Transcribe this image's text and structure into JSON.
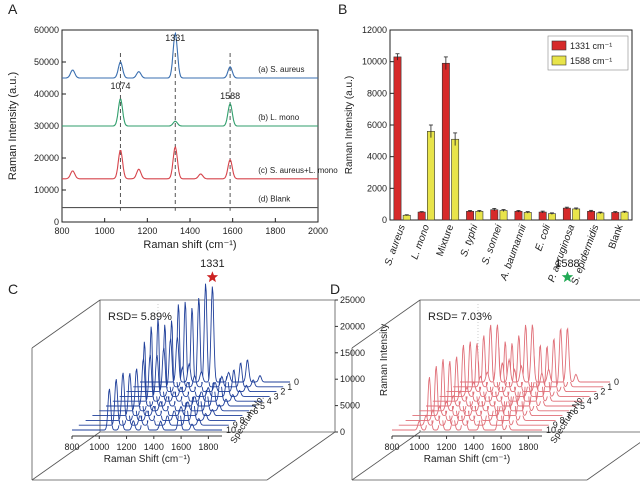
{
  "panel_labels": [
    "A",
    "B",
    "C",
    "D"
  ],
  "colors": {
    "aureus": "#3a6fb0",
    "mono": "#2f9e6b",
    "mixture": "#d6444b",
    "blank": "#555555",
    "bar_1331": "#d62a2a",
    "bar_1588": "#e8e44a",
    "waterfall_blue": "#1f3f9a",
    "waterfall_red": "#e06f78",
    "star_red": "#cc2222",
    "star_green": "#22aa55"
  },
  "chart_data": [
    {
      "id": "A",
      "type": "line",
      "xlabel": "Raman shift (cm⁻¹)",
      "ylabel": "Raman Intensity (a.u.)",
      "xlim": [
        800,
        2000
      ],
      "ylim": [
        0,
        60000
      ],
      "xticks": [
        800,
        1000,
        1200,
        1400,
        1600,
        1800,
        2000
      ],
      "yticks": [
        0,
        10000,
        20000,
        30000,
        40000,
        50000,
        60000
      ],
      "peak_labels": [
        "1331",
        "1074",
        "1588"
      ],
      "peak_positions": [
        1074,
        1331,
        1588
      ],
      "series": [
        {
          "name": "(a) S. aureus",
          "color_key": "aureus",
          "baseline": 45000,
          "peaks": [
            [
              850,
              2500
            ],
            [
              1074,
              5000
            ],
            [
              1160,
              2000
            ],
            [
              1331,
              14000
            ],
            [
              1588,
              3500
            ]
          ]
        },
        {
          "name": "(b) L. mono",
          "color_key": "mono",
          "baseline": 30000,
          "peaks": [
            [
              1074,
              8500
            ],
            [
              1331,
              1500
            ],
            [
              1588,
              7000
            ]
          ]
        },
        {
          "name": "(c) S. aureus+L. mono",
          "color_key": "mixture",
          "baseline": 13500,
          "peaks": [
            [
              850,
              2500
            ],
            [
              1074,
              9000
            ],
            [
              1160,
              3000
            ],
            [
              1331,
              10000
            ],
            [
              1450,
              1500
            ],
            [
              1588,
              6000
            ]
          ]
        },
        {
          "name": "(d) Blank",
          "color_key": "blank",
          "baseline": 4500,
          "peaks": []
        }
      ]
    },
    {
      "id": "B",
      "type": "bar",
      "ylabel": "Raman Intensity (a.u.)",
      "ylim": [
        0,
        12000
      ],
      "yticks": [
        0,
        2000,
        4000,
        6000,
        8000,
        10000,
        12000
      ],
      "categories": [
        "S. aureus",
        "L. mono",
        "Mixture",
        "S. typhi",
        "S. sonnei",
        "A. baumannii",
        "E. coli",
        "P. aeruginosa",
        "S. epidermidis",
        "Blank"
      ],
      "series": [
        {
          "name": "1331 cm⁻¹",
          "color_key": "bar_1331",
          "values": [
            10300,
            500,
            9900,
            550,
            650,
            550,
            500,
            750,
            550,
            480
          ],
          "errors": [
            200,
            30,
            400,
            50,
            80,
            50,
            60,
            60,
            60,
            50
          ]
        },
        {
          "name": "1588 cm⁻¹",
          "color_key": "bar_1588",
          "values": [
            300,
            5600,
            5100,
            550,
            600,
            480,
            400,
            700,
            450,
            500
          ],
          "errors": [
            30,
            400,
            400,
            50,
            60,
            50,
            50,
            60,
            50,
            50
          ]
        }
      ]
    },
    {
      "id": "C",
      "type": "waterfall",
      "color_key": "waterfall_blue",
      "rsd": "RSD= 5.89%",
      "peak_label": "1331",
      "xlabel": "Raman Shift (cm⁻¹)",
      "zlabel": "Raman Intensity",
      "depth_label": "Spectrum No.",
      "xticks": [
        800,
        1000,
        1200,
        1400,
        1600,
        1800
      ],
      "zticks": [
        0,
        5000,
        10000,
        15000,
        20000,
        25000
      ],
      "spectrum_nums": [
        0,
        1,
        2,
        3,
        4,
        5,
        6,
        7,
        8,
        9,
        10
      ],
      "peaks": [
        [
          1074,
          7000
        ],
        [
          1160,
          2800
        ],
        [
          1250,
          1600
        ],
        [
          1331,
          15000
        ],
        [
          1450,
          1500
        ],
        [
          1588,
          3500
        ],
        [
          1680,
          1000
        ]
      ]
    },
    {
      "id": "D",
      "type": "waterfall",
      "color_key": "waterfall_red",
      "rsd": "RSD= 7.03%",
      "peak_label": "1588",
      "xlabel": "Raman Shift (cm⁻¹)",
      "zlabel": "Raman Intensity",
      "depth_label": "Spectrum No.",
      "xticks": [
        800,
        1000,
        1200,
        1400,
        1600,
        1800
      ],
      "zticks": [
        0,
        5000,
        10000,
        15000,
        20000,
        25000
      ],
      "spectrum_nums": [
        0,
        1,
        2,
        3,
        4,
        5,
        6,
        7,
        8,
        9,
        10
      ],
      "peaks": [
        [
          1000,
          1500
        ],
        [
          1074,
          9000
        ],
        [
          1160,
          3500
        ],
        [
          1250,
          2500
        ],
        [
          1331,
          9000
        ],
        [
          1450,
          2000
        ],
        [
          1588,
          8500
        ],
        [
          1650,
          1200
        ]
      ]
    }
  ]
}
